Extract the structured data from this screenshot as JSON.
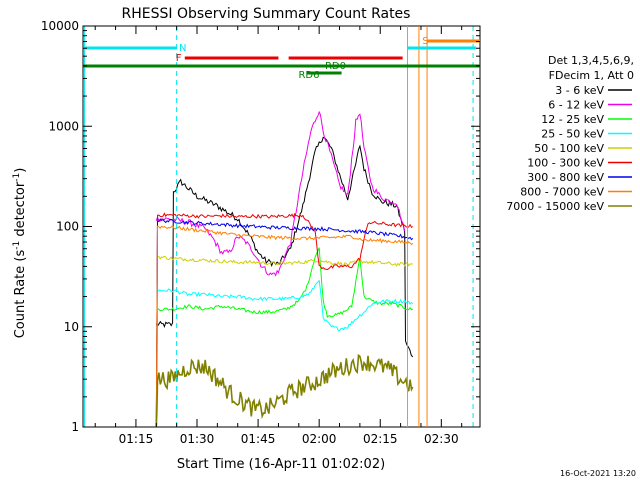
{
  "chart_data": {
    "type": "line",
    "title": "RHESSI Observing Summary Count Rates",
    "xlabel": "Start Time (16-Apr-11 01:02:02)",
    "ylabel_main": "Count Rate (s",
    "ylabel_sup1": "-1",
    "ylabel_mid": " detector",
    "ylabel_sup2": "-1",
    "ylabel_end": ")",
    "yscale": "log",
    "ylim": [
      1,
      10000
    ],
    "xlim_minutes": [
      62.0,
      159.5
    ],
    "x_ticks": [
      {
        "m": 75,
        "label": "01:15"
      },
      {
        "m": 90,
        "label": "01:30"
      },
      {
        "m": 105,
        "label": "01:45"
      },
      {
        "m": 120,
        "label": "02:00"
      },
      {
        "m": 135,
        "label": "02:15"
      },
      {
        "m": 150,
        "label": "02:30"
      }
    ],
    "y_ticks": [
      {
        "v": 1,
        "label": "1"
      },
      {
        "v": 10,
        "label": "10"
      },
      {
        "v": 100,
        "label": "100"
      },
      {
        "v": 1000,
        "label": "1000"
      },
      {
        "v": 10000,
        "label": "10000"
      }
    ],
    "legend": {
      "placement": "right",
      "header1": "Det 1,3,4,5,6,9,",
      "header2": "FDecim 1, Att 0"
    },
    "flags": {
      "N": {
        "label": "N",
        "color": "#00e5ee"
      },
      "S": {
        "label": "S",
        "color": "#ff7f00"
      },
      "F": {
        "label": "F",
        "color": "#ee0000"
      },
      "RD0": {
        "label": "RD0",
        "color": "#008000"
      },
      "RD6": {
        "label": "RD6",
        "color": "#008000"
      }
    },
    "series": [
      {
        "name": "3 - 6 keV",
        "color": "#000000",
        "points": [
          [
            80,
            10.5
          ],
          [
            84,
            10.5
          ],
          [
            84.2,
            220
          ],
          [
            86,
            280
          ],
          [
            90,
            200
          ],
          [
            95,
            160
          ],
          [
            100,
            120
          ],
          [
            103,
            80
          ],
          [
            105,
            55
          ],
          [
            107,
            45
          ],
          [
            110,
            42
          ],
          [
            113,
            60
          ],
          [
            116,
            160
          ],
          [
            119,
            550
          ],
          [
            121,
            800
          ],
          [
            123,
            600
          ],
          [
            125,
            330
          ],
          [
            127,
            190
          ],
          [
            129,
            420
          ],
          [
            130,
            650
          ],
          [
            131,
            380
          ],
          [
            133,
            220
          ],
          [
            135,
            180
          ],
          [
            137,
            170
          ],
          [
            139,
            160
          ],
          [
            141,
            90
          ],
          [
            141.2,
            7
          ],
          [
            143,
            5
          ]
        ]
      },
      {
        "name": "6 - 12 keV",
        "color": "#ee00ee",
        "points": [
          [
            80,
            120
          ],
          [
            84,
            118
          ],
          [
            88,
            110
          ],
          [
            92,
            95
          ],
          [
            94,
            75
          ],
          [
            96,
            55
          ],
          [
            98,
            55
          ],
          [
            100,
            80
          ],
          [
            102,
            70
          ],
          [
            104,
            55
          ],
          [
            106,
            40
          ],
          [
            108,
            33
          ],
          [
            110,
            35
          ],
          [
            113,
            70
          ],
          [
            116,
            350
          ],
          [
            118,
            900
          ],
          [
            120,
            1450
          ],
          [
            121,
            900
          ],
          [
            123,
            500
          ],
          [
            125,
            260
          ],
          [
            127,
            200
          ],
          [
            129,
            1100
          ],
          [
            130,
            1400
          ],
          [
            131,
            600
          ],
          [
            133,
            250
          ],
          [
            135,
            200
          ],
          [
            137,
            180
          ],
          [
            139,
            175
          ],
          [
            141,
            90
          ]
        ]
      },
      {
        "name": "12 - 25 keV",
        "color": "#00ff00",
        "points": [
          [
            80,
            1
          ],
          [
            80.3,
            15
          ],
          [
            84,
            15
          ],
          [
            88,
            16
          ],
          [
            92,
            15
          ],
          [
            96,
            16
          ],
          [
            100,
            15
          ],
          [
            104,
            14
          ],
          [
            108,
            14
          ],
          [
            112,
            15
          ],
          [
            115,
            18
          ],
          [
            117,
            25
          ],
          [
            119,
            50
          ],
          [
            120,
            60
          ],
          [
            121,
            18
          ],
          [
            122,
            13
          ],
          [
            124,
            13
          ],
          [
            126,
            14
          ],
          [
            128,
            16
          ],
          [
            130,
            50
          ],
          [
            131,
            20
          ],
          [
            133,
            18
          ],
          [
            135,
            17
          ],
          [
            138,
            17
          ],
          [
            140,
            16
          ],
          [
            142,
            15
          ],
          [
            143,
            15
          ]
        ]
      },
      {
        "name": "25 - 50 keV",
        "color": "#00ffff",
        "points": [
          [
            80,
            1
          ],
          [
            80.3,
            23
          ],
          [
            84,
            23
          ],
          [
            88,
            21
          ],
          [
            92,
            21
          ],
          [
            96,
            20
          ],
          [
            100,
            20
          ],
          [
            104,
            19
          ],
          [
            108,
            19
          ],
          [
            112,
            19
          ],
          [
            116,
            20
          ],
          [
            118,
            22
          ],
          [
            120,
            30
          ],
          [
            121,
            12
          ],
          [
            123,
            10
          ],
          [
            125,
            9.5
          ],
          [
            127,
            10
          ],
          [
            129,
            12
          ],
          [
            131,
            14
          ],
          [
            133,
            17
          ],
          [
            136,
            18
          ],
          [
            139,
            18
          ],
          [
            141,
            18
          ],
          [
            143,
            17
          ]
        ]
      },
      {
        "name": "50 - 100 keV",
        "color": "#d0d000",
        "points": [
          [
            80,
            1
          ],
          [
            80.3,
            50
          ],
          [
            84,
            48
          ],
          [
            88,
            47
          ],
          [
            92,
            46
          ],
          [
            96,
            45
          ],
          [
            100,
            44
          ],
          [
            104,
            44
          ],
          [
            108,
            43
          ],
          [
            112,
            43
          ],
          [
            116,
            44
          ],
          [
            119,
            46
          ],
          [
            121,
            45
          ],
          [
            124,
            43
          ],
          [
            127,
            42
          ],
          [
            130,
            45
          ],
          [
            133,
            44
          ],
          [
            136,
            43
          ],
          [
            139,
            42
          ],
          [
            141,
            42
          ],
          [
            143,
            42
          ]
        ]
      },
      {
        "name": "100 - 300 keV",
        "color": "#ee0000",
        "points": [
          [
            80,
            1
          ],
          [
            80.3,
            130
          ],
          [
            84,
            130
          ],
          [
            88,
            128
          ],
          [
            92,
            126
          ],
          [
            96,
            128
          ],
          [
            100,
            125
          ],
          [
            104,
            127
          ],
          [
            108,
            125
          ],
          [
            112,
            128
          ],
          [
            116,
            130
          ],
          [
            119,
            90
          ],
          [
            120,
            40
          ],
          [
            122,
            38
          ],
          [
            124,
            40
          ],
          [
            126,
            40
          ],
          [
            128,
            40
          ],
          [
            130,
            48
          ],
          [
            132,
            110
          ],
          [
            134,
            108
          ],
          [
            137,
            105
          ],
          [
            140,
            102
          ],
          [
            143,
            100
          ]
        ]
      },
      {
        "name": "300 - 800 keV",
        "color": "#0000ee",
        "points": [
          [
            80,
            1
          ],
          [
            80.3,
            115
          ],
          [
            84,
            113
          ],
          [
            88,
            110
          ],
          [
            92,
            107
          ],
          [
            96,
            105
          ],
          [
            100,
            102
          ],
          [
            104,
            100
          ],
          [
            108,
            98
          ],
          [
            112,
            97
          ],
          [
            116,
            96
          ],
          [
            120,
            95
          ],
          [
            124,
            93
          ],
          [
            128,
            90
          ],
          [
            132,
            88
          ],
          [
            136,
            84
          ],
          [
            140,
            80
          ],
          [
            143,
            76
          ]
        ]
      },
      {
        "name": "800 - 7000 keV",
        "color": "#ff7f00",
        "points": [
          [
            80,
            1
          ],
          [
            80.3,
            100
          ],
          [
            84,
            98
          ],
          [
            88,
            94
          ],
          [
            92,
            90
          ],
          [
            96,
            86
          ],
          [
            100,
            82
          ],
          [
            104,
            80
          ],
          [
            108,
            78
          ],
          [
            112,
            77
          ],
          [
            116,
            76
          ],
          [
            120,
            77
          ],
          [
            124,
            78
          ],
          [
            128,
            80
          ],
          [
            130,
            75
          ],
          [
            132,
            73
          ],
          [
            136,
            72
          ],
          [
            140,
            70
          ],
          [
            143,
            68
          ]
        ]
      },
      {
        "name": "7000 - 15000 keV",
        "color": "#808000",
        "points": [
          [
            80,
            1
          ],
          [
            80.3,
            3
          ],
          [
            84,
            3
          ],
          [
            86,
            3.5
          ],
          [
            88,
            4
          ],
          [
            92,
            4
          ],
          [
            95,
            3
          ],
          [
            98,
            2.2
          ],
          [
            101,
            1.8
          ],
          [
            104,
            1.5
          ],
          [
            107,
            1.5
          ],
          [
            110,
            1.8
          ],
          [
            113,
            2.2
          ],
          [
            116,
            2.5
          ],
          [
            119,
            2.8
          ],
          [
            122,
            3.3
          ],
          [
            125,
            3.8
          ],
          [
            128,
            4.2
          ],
          [
            131,
            4.5
          ],
          [
            134,
            4.2
          ],
          [
            137,
            3.8
          ],
          [
            140,
            3
          ],
          [
            143,
            2.5
          ]
        ]
      }
    ],
    "footer_date": "16-Oct-2021 13:20"
  }
}
